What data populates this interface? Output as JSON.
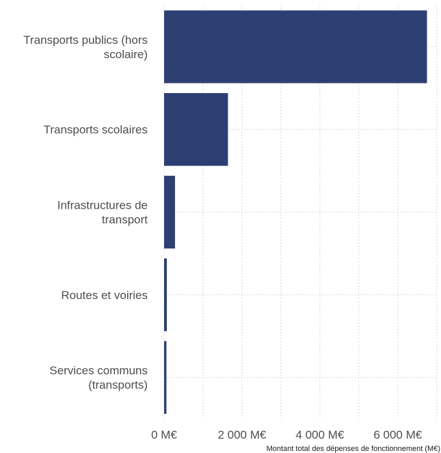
{
  "chart_data": {
    "type": "bar",
    "orientation": "horizontal",
    "categories": [
      [
        "Transports publics (hors",
        "scolaire)"
      ],
      [
        "Transports scolaires"
      ],
      [
        "Infrastructures de",
        "transport"
      ],
      [
        "Routes et voiries"
      ],
      [
        "Services communs",
        "(transports)"
      ]
    ],
    "values": [
      6750,
      1640,
      280,
      70,
      60
    ],
    "xlim": [
      0,
      7000
    ],
    "xticks": [
      0,
      2000,
      4000,
      6000
    ],
    "xtick_labels": [
      "0 M€",
      "2 000 M€",
      "4 000 M€",
      "6 000 M€"
    ],
    "xlabel": "Montant total des dépenses de fonctionnement (M€)",
    "ylabel": "",
    "title": "",
    "bar_color": "#2e3f73",
    "grid": "dotted",
    "legend": "none"
  }
}
